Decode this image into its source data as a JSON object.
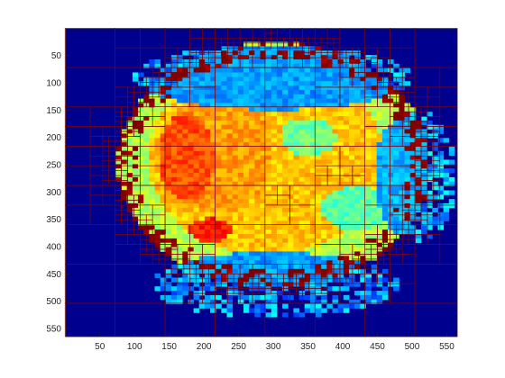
{
  "chart_data": {
    "type": "heatmap",
    "title": "",
    "xlabel": "",
    "ylabel": "",
    "colormap": "jet",
    "xlim": [
      1,
      565
    ],
    "ylim": [
      1,
      565
    ],
    "y_reversed": true,
    "grid": false,
    "xticks": [
      50,
      100,
      150,
      200,
      250,
      300,
      350,
      400,
      450,
      500,
      550
    ],
    "yticks": [
      50,
      100,
      150,
      200,
      250,
      300,
      350,
      400,
      450,
      500,
      550
    ],
    "xtick_labels": [
      "50",
      "100",
      "150",
      "200",
      "250",
      "300",
      "350",
      "400",
      "450",
      "500",
      "550"
    ],
    "ytick_labels": [
      "50",
      "100",
      "150",
      "200",
      "250",
      "300",
      "350",
      "400",
      "450",
      "500",
      "550"
    ],
    "overlay": "quadtree block boundaries",
    "overlay_color": "#7f0000",
    "background_color": "#00008f",
    "regions": [
      {
        "shape": "ellipse",
        "cx": 300,
        "cy": 250,
        "rx": 225,
        "ry": 225,
        "value": 0.55
      },
      {
        "shape": "ellipse",
        "cx": 290,
        "cy": 240,
        "rx": 170,
        "ry": 175,
        "value": 0.68
      },
      {
        "shape": "ellipse",
        "cx": 220,
        "cy": 230,
        "rx": 80,
        "ry": 110,
        "value": 0.72
      },
      {
        "shape": "ellipse",
        "cx": 175,
        "cy": 235,
        "rx": 40,
        "ry": 80,
        "value": 0.8
      },
      {
        "shape": "ellipse",
        "cx": 210,
        "cy": 370,
        "rx": 30,
        "ry": 22,
        "value": 0.85
      },
      {
        "shape": "ellipse",
        "cx": 350,
        "cy": 200,
        "rx": 40,
        "ry": 35,
        "value": 0.48
      },
      {
        "shape": "ellipse",
        "cx": 420,
        "cy": 330,
        "rx": 50,
        "ry": 40,
        "value": 0.46
      },
      {
        "shape": "ellipse",
        "cx": 505,
        "cy": 270,
        "rx": 60,
        "ry": 120,
        "value": 0.3
      },
      {
        "shape": "ellipse",
        "cx": 300,
        "cy": 470,
        "rx": 180,
        "ry": 60,
        "value": 0.28
      },
      {
        "shape": "ellipse",
        "cx": 300,
        "cy": 90,
        "rx": 200,
        "ry": 60,
        "value": 0.28
      }
    ]
  }
}
